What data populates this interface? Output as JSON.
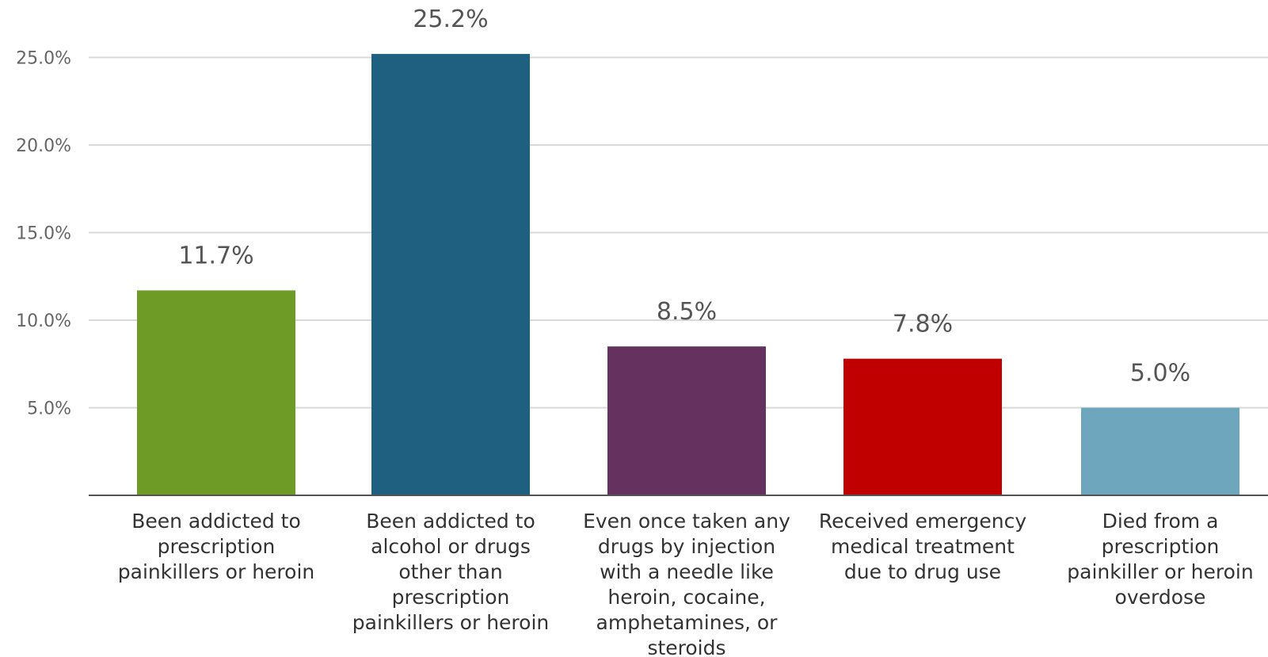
{
  "chart_data": {
    "type": "bar",
    "title": "",
    "xlabel": "",
    "ylabel": "",
    "ylim": [
      0,
      25.2
    ],
    "yticks": [
      "5.0%",
      "10.0%",
      "15.0%",
      "20.0%",
      "25.0%"
    ],
    "ytick_values": [
      5,
      10,
      15,
      20,
      25
    ],
    "grid": true,
    "legend": "none",
    "bars": [
      {
        "label_lines": [
          "Been addicted to",
          "prescription",
          "painkillers or heroin"
        ],
        "value": 11.7,
        "value_label": "11.7%",
        "color": "#6e9a26"
      },
      {
        "label_lines": [
          "Been addicted to",
          "alcohol or drugs",
          "other than",
          "prescription",
          "painkillers or heroin"
        ],
        "value": 25.2,
        "value_label": "25.2%",
        "color": "#1f6080"
      },
      {
        "label_lines": [
          "Even once taken any",
          "drugs by injection",
          "with a needle like",
          "heroin, cocaine,",
          "amphetamines, or",
          "steroids"
        ],
        "value": 8.5,
        "value_label": "8.5%",
        "color": "#65325f"
      },
      {
        "label_lines": [
          "Received emergency",
          "medical treatment",
          "due to drug use"
        ],
        "value": 7.8,
        "value_label": "7.8%",
        "color": "#c00000"
      },
      {
        "label_lines": [
          "Died from a",
          "prescription",
          "painkiller or heroin",
          "overdose"
        ],
        "value": 5.0,
        "value_label": "5.0%",
        "color": "#6ea6be"
      }
    ]
  }
}
